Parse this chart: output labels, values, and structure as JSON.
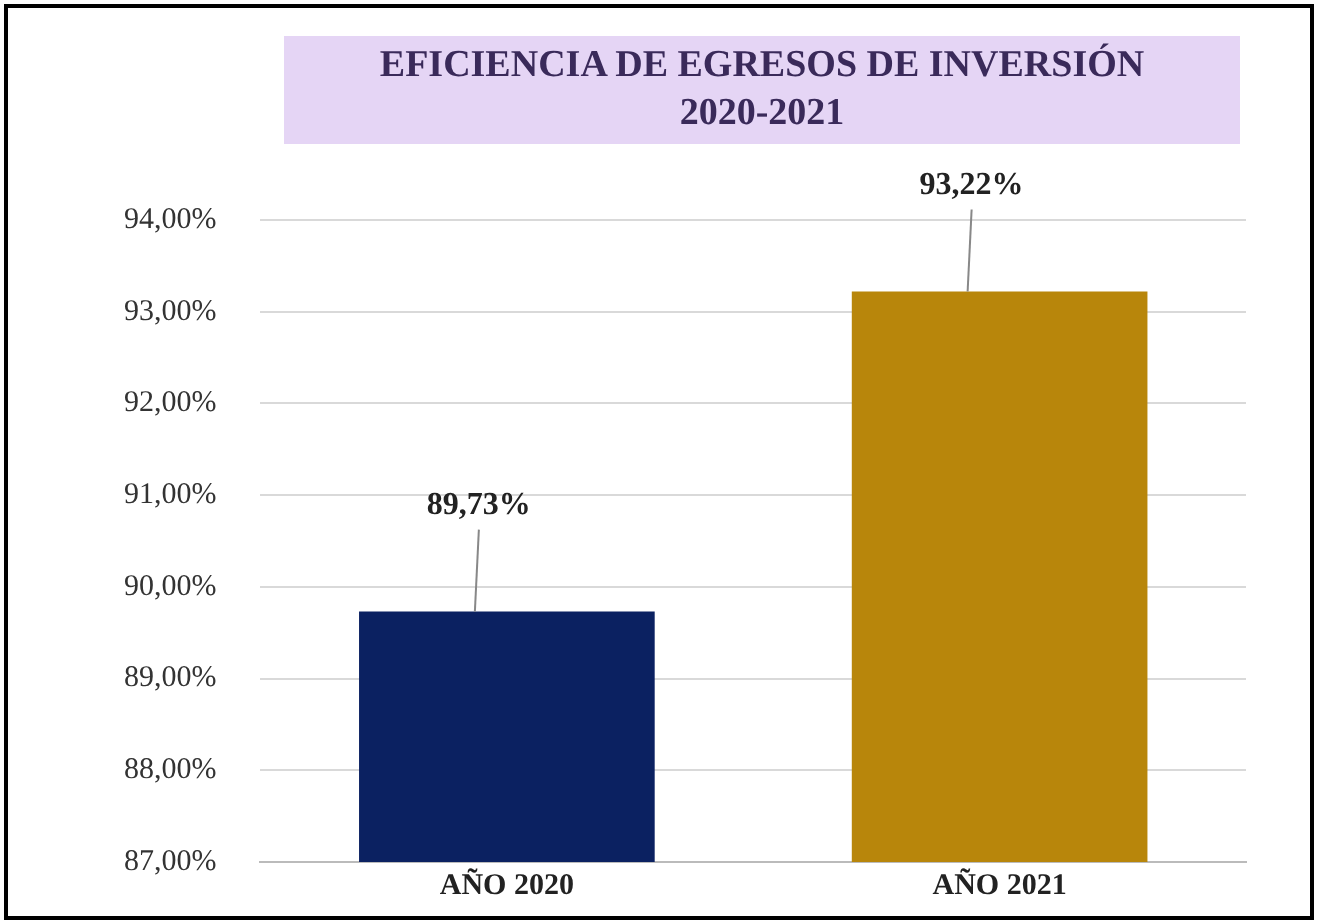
{
  "chart_data": {
    "type": "bar",
    "title": "EFICIENCIA DE EGRESOS DE INVERSIÓN",
    "subtitle": "2020-2021",
    "categories": [
      "AÑO 2020",
      "AÑO 2021"
    ],
    "values": [
      89.73,
      93.22
    ],
    "colors": [
      "#0b2161",
      "#b8860b"
    ],
    "value_labels": [
      "89,73%",
      "93,22%"
    ],
    "ylim": [
      87,
      94
    ],
    "yticks": [
      {
        "value": 87,
        "label": "87,00%"
      },
      {
        "value": 88,
        "label": "88,00%"
      },
      {
        "value": 89,
        "label": "89,00%"
      },
      {
        "value": 90,
        "label": "90,00%"
      },
      {
        "value": 91,
        "label": "91,00%"
      },
      {
        "value": 92,
        "label": "92,00%"
      },
      {
        "value": 93,
        "label": "93,00%"
      },
      {
        "value": 94,
        "label": "94,00%"
      }
    ],
    "grid": "y",
    "legend": false
  }
}
